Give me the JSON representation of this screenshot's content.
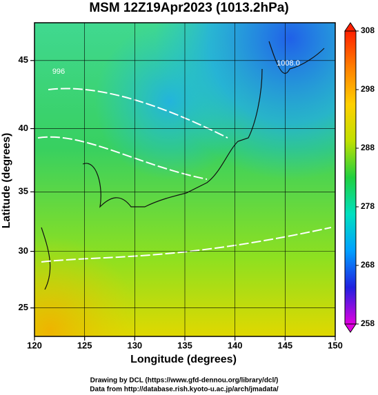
{
  "chart_data": {
    "type": "map",
    "title": "MSM 12Z19Apr2023 (1013.2hPa)",
    "xlabel": "Longitude (degrees)",
    "ylabel": "Latitude  (degrees)",
    "projection": "mercator",
    "xlim": [
      120,
      150
    ],
    "xticks": [
      120,
      125,
      130,
      135,
      140,
      145,
      150
    ],
    "ylim": [
      22.4,
      47.6
    ],
    "yticks": [
      25,
      30,
      35,
      40,
      45
    ],
    "grid": true,
    "contour_labels": [
      "1008.0",
      "996"
    ],
    "colorbar": {
      "zlim": [
        258,
        308
      ],
      "zticks": [
        258,
        268,
        278,
        288,
        298,
        308
      ],
      "colormap": [
        "#e000e0",
        "#2020e0",
        "#00a0ff",
        "#00e0c0",
        "#20d040",
        "#c0e000",
        "#ffd000",
        "#ff8000",
        "#ff2000"
      ]
    },
    "footer": [
      "Drawing by DCL (https://www.gfd-dennou.org/library/dcl/)",
      "Data from http://database.rish.kyoto-u.ac.jp/arch/jmadata/"
    ]
  }
}
